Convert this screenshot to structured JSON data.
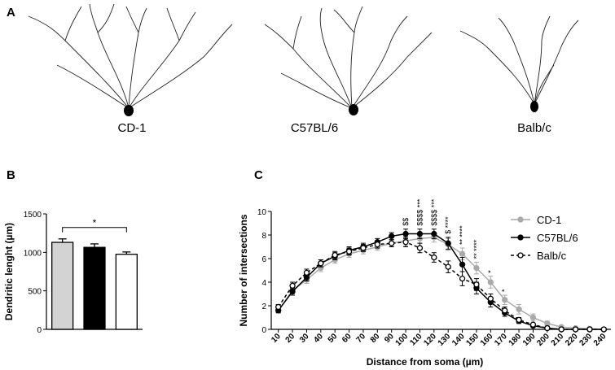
{
  "panel_a": {
    "label": "A",
    "strains": [
      "CD-1",
      "C57BL/6",
      "Balb/c"
    ]
  },
  "chart_data": [
    {
      "type": "bar",
      "label": "B",
      "ylabel": "Dendritic lenght (µm)",
      "categories": [
        null,
        null,
        null
      ],
      "values": [
        1130,
        1065,
        975
      ],
      "errors": [
        45,
        45,
        30
      ],
      "colors": [
        "#d3d3d3",
        "#000000",
        "#ffffff"
      ],
      "ylim": [
        0,
        1500
      ],
      "yticks": [
        0,
        500,
        1000,
        1500
      ],
      "annotations": [
        {
          "text": "*",
          "between": [
            0,
            2
          ]
        }
      ]
    },
    {
      "type": "line",
      "label": "C",
      "ylabel": "Number of intersections",
      "xlabel": "Distance from soma (µm)",
      "x": [
        10,
        20,
        30,
        40,
        50,
        60,
        70,
        80,
        90,
        100,
        110,
        120,
        130,
        140,
        150,
        160,
        170,
        180,
        190,
        200,
        210,
        220,
        230,
        240
      ],
      "xlim": [
        5,
        245
      ],
      "xticks": [
        10,
        20,
        30,
        40,
        50,
        60,
        70,
        80,
        90,
        100,
        110,
        120,
        130,
        140,
        150,
        160,
        170,
        180,
        190,
        200,
        210,
        220,
        230,
        240
      ],
      "ylim": [
        0,
        10
      ],
      "yticks": [
        0,
        2,
        4,
        6,
        8,
        10
      ],
      "legend": "right",
      "series": [
        {
          "name": "CD-1",
          "color": "#a9a9a9",
          "marker": "filled",
          "dash": false,
          "values": [
            1.6,
            3.3,
            4.2,
            5.2,
            5.9,
            6.4,
            6.7,
            7.0,
            7.3,
            7.5,
            7.7,
            7.8,
            7.2,
            6.4,
            5.2,
            4.0,
            2.5,
            1.7,
            1.0,
            0.5,
            0.2,
            0.1,
            0.05,
            0
          ],
          "errors": [
            0.2,
            0.3,
            0.3,
            0.3,
            0.3,
            0.3,
            0.3,
            0.3,
            0.3,
            0.4,
            0.4,
            0.4,
            0.5,
            0.5,
            0.5,
            0.5,
            0.4,
            0.4,
            0.3,
            0.2,
            0.1,
            0.1,
            0.05,
            0
          ]
        },
        {
          "name": "C57BL/6",
          "color": "#000000",
          "marker": "filled",
          "dash": false,
          "values": [
            1.6,
            3.2,
            4.4,
            5.6,
            6.2,
            6.7,
            7.0,
            7.4,
            7.9,
            8.1,
            8.1,
            8.1,
            7.3,
            5.5,
            3.5,
            2.3,
            1.4,
            0.7,
            0.3,
            0.1,
            0,
            0,
            0,
            0
          ],
          "errors": [
            0.2,
            0.3,
            0.3,
            0.3,
            0.3,
            0.3,
            0.3,
            0.3,
            0.3,
            0.4,
            0.4,
            0.4,
            0.5,
            0.6,
            0.5,
            0.4,
            0.3,
            0.2,
            0.1,
            0.1,
            0,
            0,
            0,
            0
          ]
        },
        {
          "name": "Balb/c",
          "color": "#000000",
          "marker": "open",
          "dash": true,
          "values": [
            1.9,
            3.7,
            4.8,
            5.6,
            6.3,
            6.6,
            6.9,
            7.2,
            7.3,
            7.4,
            6.9,
            6.1,
            5.3,
            4.3,
            3.8,
            2.6,
            1.6,
            0.8,
            0.4,
            0.1,
            0,
            0,
            0,
            0
          ],
          "errors": [
            0.2,
            0.3,
            0.3,
            0.3,
            0.3,
            0.3,
            0.3,
            0.3,
            0.3,
            0.4,
            0.4,
            0.4,
            0.5,
            0.6,
            0.5,
            0.4,
            0.3,
            0.2,
            0.1,
            0.1,
            0,
            0,
            0,
            0
          ]
        }
      ],
      "annotations": [
        {
          "x": 100,
          "text": "$$"
        },
        {
          "x": 110,
          "text": "$$$$ ***"
        },
        {
          "x": 120,
          "text": "$$$$ ***"
        },
        {
          "x": 130,
          "text": "$ ****"
        },
        {
          "x": 140,
          "text": "** ****"
        },
        {
          "x": 150,
          "text": "** ****"
        },
        {
          "x": 160,
          "text": "*"
        },
        {
          "x": 170,
          "text": "*"
        }
      ]
    }
  ]
}
